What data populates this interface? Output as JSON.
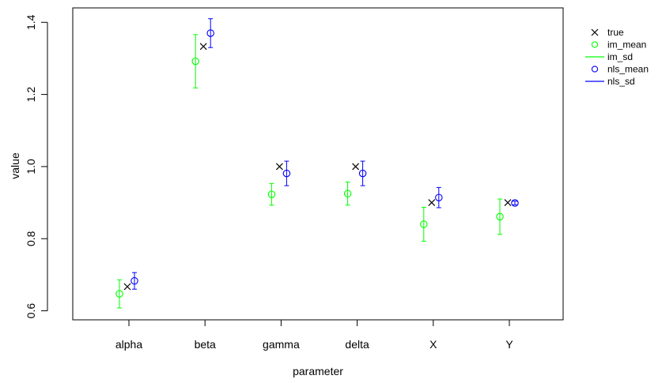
{
  "chart_data": {
    "type": "scatter",
    "title": "",
    "xlabel": "parameter",
    "ylabel": "value",
    "categories": [
      "alpha",
      "beta",
      "gamma",
      "delta",
      "X",
      "Y"
    ],
    "ylim": [
      0.575,
      1.44
    ],
    "yticks": [
      "0.6",
      "0.8",
      "1.0",
      "1.2",
      "1.4"
    ],
    "ytick_values": [
      0.6,
      0.8,
      1.0,
      1.2,
      1.4
    ],
    "grid": false,
    "legend_position": "top-right outside",
    "series": [
      {
        "name": "true",
        "marker": "cross",
        "color": "#000000",
        "values": [
          0.667,
          1.333,
          1.0,
          1.0,
          0.9,
          0.9
        ]
      },
      {
        "name": "im_mean",
        "marker": "circle",
        "color": "#00ff00",
        "values": [
          0.647,
          1.292,
          0.923,
          0.925,
          0.84,
          0.861
        ]
      },
      {
        "name": "im_sd",
        "marker": "errorbar",
        "color": "#00ff00",
        "low": [
          0.608,
          1.218,
          0.893,
          0.893,
          0.793,
          0.812
        ],
        "high": [
          0.686,
          1.366,
          0.953,
          0.957,
          0.887,
          0.91
        ]
      },
      {
        "name": "nls_mean",
        "marker": "circle",
        "color": "#0000ff",
        "values": [
          0.683,
          1.37,
          0.981,
          0.981,
          0.914,
          0.899
        ]
      },
      {
        "name": "nls_sd",
        "marker": "errorbar",
        "color": "#0000ff",
        "low": [
          0.66,
          1.33,
          0.947,
          0.947,
          0.886,
          0.894
        ],
        "high": [
          0.706,
          1.41,
          1.015,
          1.015,
          0.942,
          0.904
        ]
      }
    ]
  }
}
